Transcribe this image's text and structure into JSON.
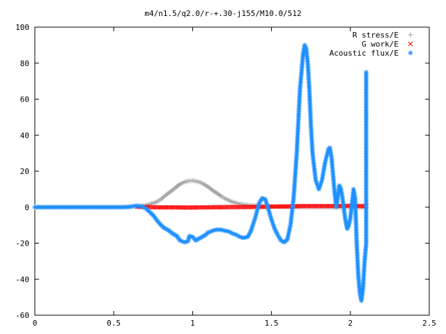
{
  "chart_data": {
    "type": "scatter",
    "title": "m4/n1.5/q2.0/r-+.30-j155/M10.0/512",
    "xlabel": "",
    "ylabel": "",
    "xlim": [
      0,
      2.5
    ],
    "ylim": [
      -60,
      100
    ],
    "x_ticks": [
      "0",
      "0.5",
      "1",
      "1.5",
      "2",
      "2.5"
    ],
    "y_ticks": [
      "-60",
      "-40",
      "-20",
      "0",
      "20",
      "40",
      "60",
      "80",
      "100"
    ],
    "grid": false,
    "legend_position": "top-right",
    "series": [
      {
        "name": "R stress/E",
        "marker": "plus",
        "color": "#a0a0a0",
        "x": [
          0.0,
          0.05,
          0.1,
          0.15,
          0.2,
          0.25,
          0.3,
          0.35,
          0.4,
          0.45,
          0.5,
          0.55,
          0.6,
          0.62,
          0.65,
          0.68,
          0.7,
          0.72,
          0.75,
          0.78,
          0.8,
          0.82,
          0.85,
          0.88,
          0.9,
          0.92,
          0.95,
          0.97,
          1.0,
          1.02,
          1.05,
          1.07,
          1.1,
          1.12,
          1.15,
          1.18,
          1.2,
          1.23,
          1.25,
          1.28,
          1.3,
          1.33,
          1.35,
          1.38,
          1.4,
          1.45,
          1.5,
          1.55,
          1.6,
          1.65,
          1.7,
          1.75,
          1.8,
          1.85,
          1.9,
          1.95,
          2.0,
          2.05,
          2.1
        ],
        "y": [
          0,
          0,
          0,
          0,
          0,
          0,
          0,
          0,
          0,
          0,
          0,
          0,
          0.1,
          0.3,
          0.5,
          0.8,
          1.0,
          1.5,
          2.2,
          3.3,
          4.5,
          6.0,
          8.0,
          10.0,
          11.5,
          12.8,
          14.0,
          14.5,
          14.8,
          14.5,
          13.8,
          12.8,
          11.2,
          9.8,
          8.0,
          6.2,
          5.0,
          3.8,
          3.0,
          2.2,
          1.8,
          1.4,
          1.2,
          1.0,
          0.8,
          0.6,
          0.4,
          0.3,
          0.2,
          0.2,
          0.1,
          0.1,
          0.1,
          0.1,
          0.1,
          0.1,
          0.1,
          0.1,
          0.1
        ]
      },
      {
        "name": "G work/E",
        "marker": "cross",
        "color": "#ff0000",
        "x": [
          0.65,
          0.7,
          0.75,
          0.8,
          0.85,
          0.9,
          0.95,
          1.0,
          1.05,
          1.1,
          1.15,
          1.2,
          1.25,
          1.3,
          1.35,
          1.4,
          1.45,
          1.5,
          1.55,
          1.6,
          1.65,
          1.7,
          1.75,
          1.8,
          1.85,
          1.9,
          1.95,
          2.0,
          2.05,
          2.1
        ],
        "y": [
          0.2,
          0.1,
          0.0,
          -0.1,
          -0.1,
          -0.1,
          -0.2,
          -0.2,
          -0.1,
          -0.1,
          0.0,
          0.0,
          0.1,
          0.1,
          0.1,
          0.2,
          0.2,
          0.3,
          0.4,
          0.4,
          0.5,
          0.6,
          0.6,
          0.6,
          0.6,
          0.6,
          0.7,
          0.7,
          0.6,
          0.5
        ]
      },
      {
        "name": "Acoustic flux/E",
        "marker": "star",
        "color": "#1e90ff",
        "x": [
          0.0,
          0.05,
          0.1,
          0.15,
          0.2,
          0.25,
          0.3,
          0.35,
          0.4,
          0.45,
          0.5,
          0.55,
          0.6,
          0.62,
          0.65,
          0.68,
          0.7,
          0.72,
          0.75,
          0.78,
          0.8,
          0.82,
          0.85,
          0.87,
          0.9,
          0.92,
          0.95,
          0.97,
          0.98,
          1.0,
          1.02,
          1.05,
          1.08,
          1.1,
          1.13,
          1.15,
          1.18,
          1.2,
          1.23,
          1.25,
          1.28,
          1.3,
          1.32,
          1.35,
          1.37,
          1.4,
          1.42,
          1.44,
          1.46,
          1.48,
          1.5,
          1.52,
          1.54,
          1.56,
          1.58,
          1.6,
          1.62,
          1.64,
          1.66,
          1.68,
          1.7,
          1.71,
          1.72,
          1.73,
          1.74,
          1.75,
          1.76,
          1.78,
          1.8,
          1.82,
          1.84,
          1.86,
          1.87,
          1.88,
          1.89,
          1.9,
          1.91,
          1.92,
          1.93,
          1.94,
          1.95,
          1.96,
          1.97,
          1.98,
          1.99,
          2.0,
          2.01,
          2.02,
          2.03,
          2.04,
          2.05,
          2.06,
          2.07,
          2.08,
          2.09,
          2.1,
          2.1,
          2.1,
          2.1
        ],
        "y": [
          0,
          0,
          0,
          0,
          0,
          0,
          0,
          0,
          0,
          0,
          0,
          0,
          0.2,
          0.5,
          0.8,
          0.5,
          -0.5,
          -2.0,
          -4.5,
          -8.0,
          -10.0,
          -11.5,
          -13.0,
          -14.5,
          -16.0,
          -18.5,
          -19.5,
          -19.0,
          -16.0,
          -16.5,
          -18.5,
          -17.0,
          -15.5,
          -14.0,
          -13.0,
          -12.5,
          -12.5,
          -13.0,
          -13.5,
          -14.5,
          -15.5,
          -16.5,
          -17.0,
          -16.5,
          -13.0,
          -5.0,
          2.0,
          5.0,
          4.5,
          -1.0,
          -7.0,
          -12.0,
          -15.5,
          -18.5,
          -19.5,
          -18.0,
          -10.0,
          5.0,
          30.0,
          65.0,
          85.0,
          90.0,
          88.0,
          80.0,
          65.0,
          45.0,
          30.0,
          15.0,
          10.0,
          15.0,
          25.0,
          32.0,
          33.0,
          28.0,
          18.0,
          8.0,
          0.0,
          5.0,
          12.0,
          10.0,
          5.0,
          -2.0,
          -8.0,
          -12.0,
          -10.0,
          -6.0,
          2.0,
          10.0,
          5.0,
          -20.0,
          -38.0,
          -48.0,
          -52.0,
          -45.0,
          -30.0,
          -20.0,
          35.0,
          68.0,
          75.0
        ]
      }
    ]
  }
}
